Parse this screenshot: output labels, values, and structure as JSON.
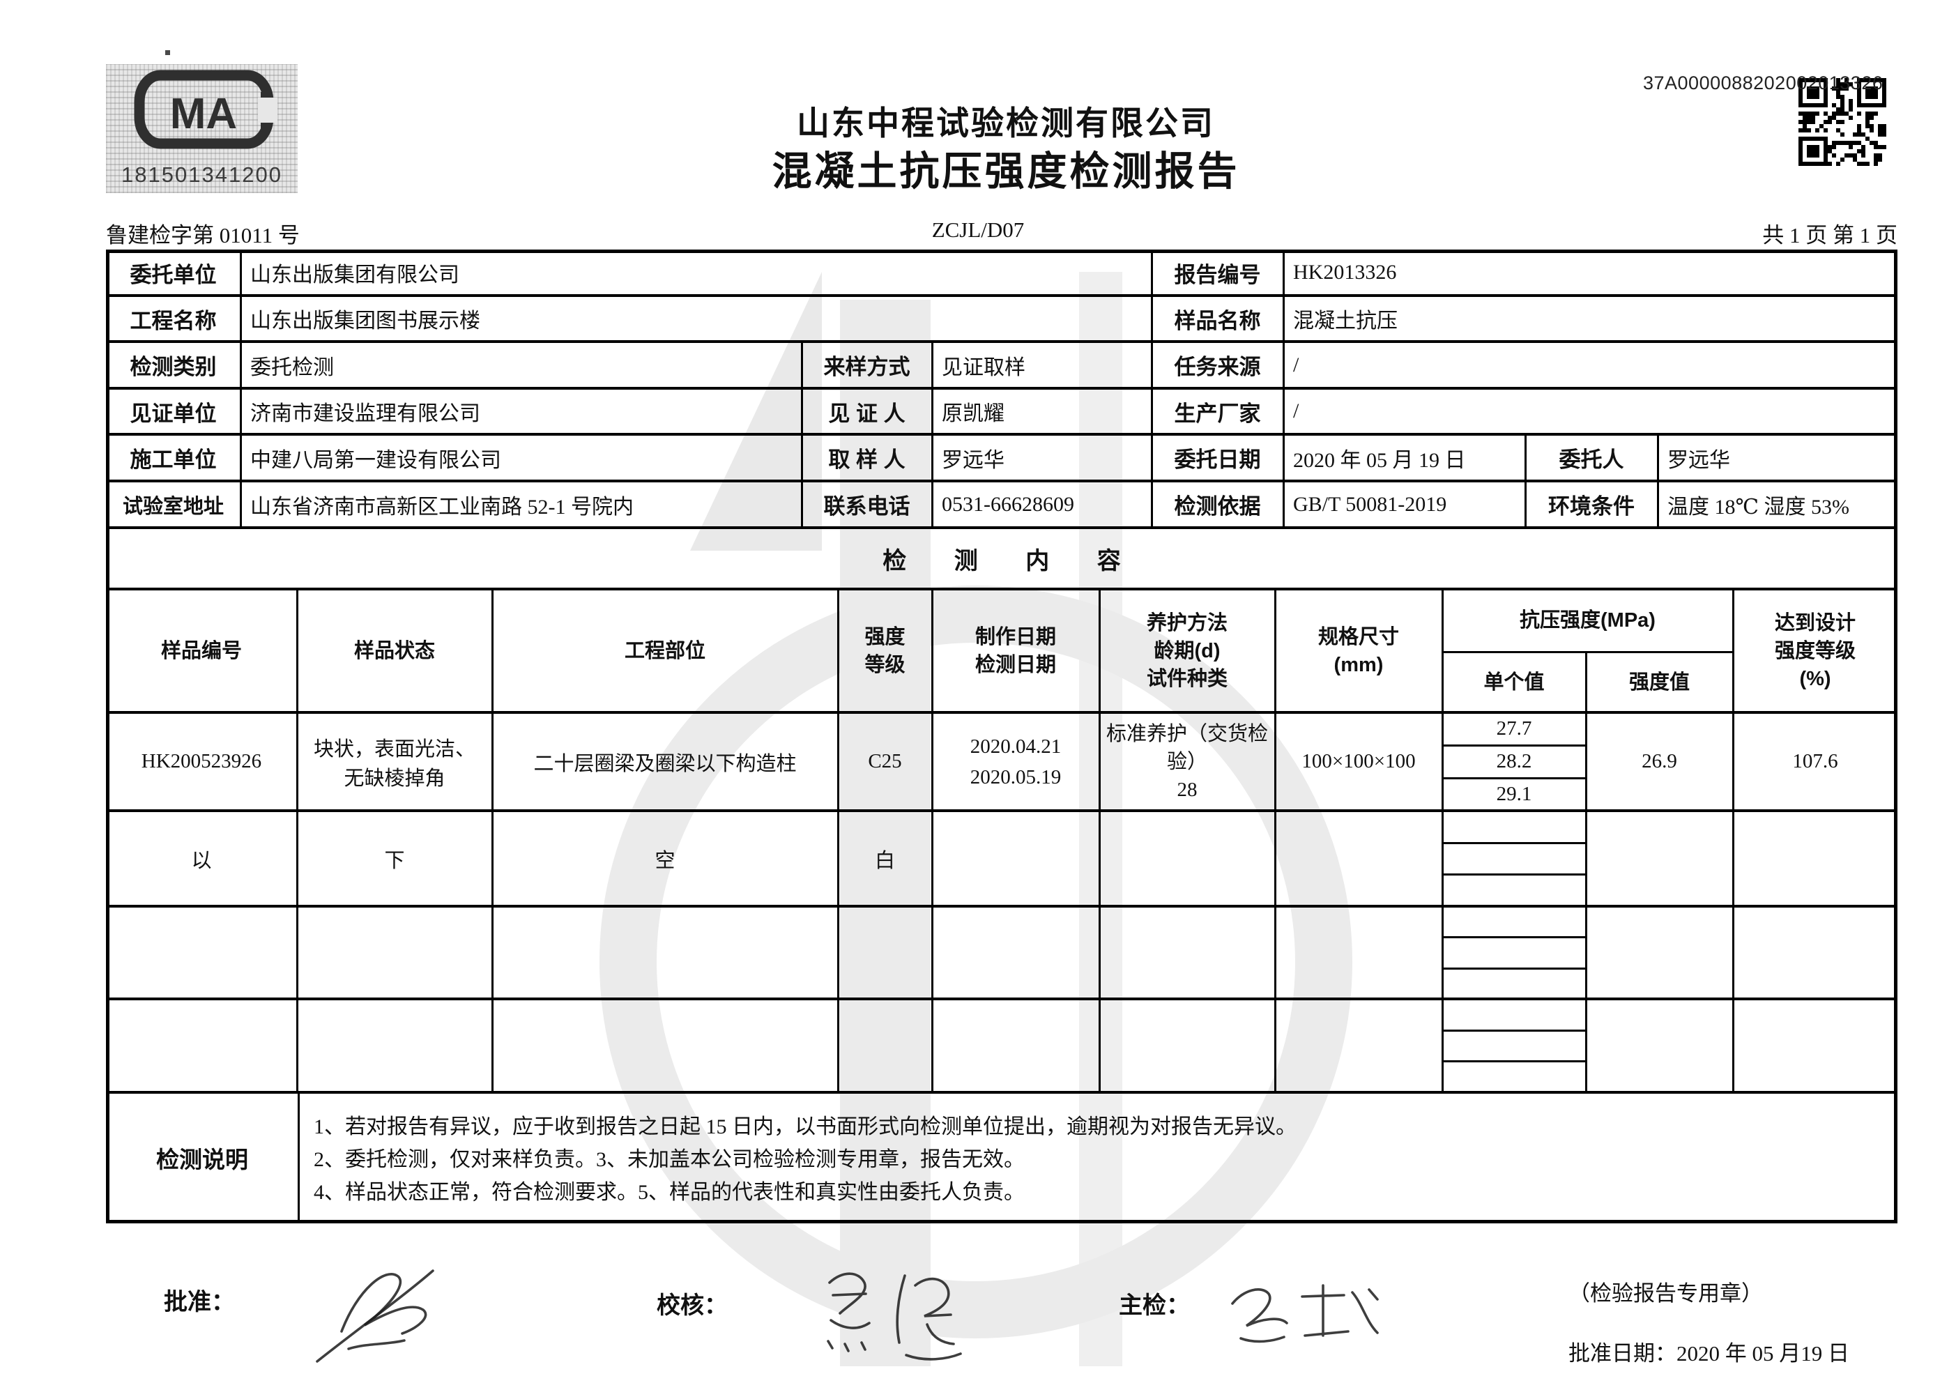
{
  "header": {
    "cma_number": "181501341200",
    "serial_number": "37A0000088202002013326",
    "company_title": "山东中程试验检测有限公司",
    "report_title": "混凝土抗压强度检测报告",
    "doc_number_left": "鲁建检字第 01011 号",
    "doc_code": "ZCJL/D07",
    "page_info": "共 1 页   第 1 页"
  },
  "info": {
    "entrust_unit": {
      "label": "委托单位",
      "value": "山东出版集团有限公司"
    },
    "report_no": {
      "label": "报告编号",
      "value": "HK2013326"
    },
    "project_name": {
      "label": "工程名称",
      "value": "山东出版集团图书展示楼"
    },
    "sample_name": {
      "label": "样品名称",
      "value": "混凝土抗压"
    },
    "test_type": {
      "label": "检测类别",
      "value": "委托检测"
    },
    "sampling_method": {
      "label": "来样方式",
      "value": "见证取样"
    },
    "task_source": {
      "label": "任务来源",
      "value": "/"
    },
    "witness_unit": {
      "label": "见证单位",
      "value": "济南市建设监理有限公司"
    },
    "witness_person": {
      "label": "见 证 人",
      "value": "原凯耀"
    },
    "manufacturer": {
      "label": "生产厂家",
      "value": "/"
    },
    "construction_unit": {
      "label": "施工单位",
      "value": "中建八局第一建设有限公司"
    },
    "sampler": {
      "label": "取 样 人",
      "value": "罗远华"
    },
    "entrust_date": {
      "label": "委托日期",
      "value": "2020 年 05 月 19 日"
    },
    "entrust_person": {
      "label": "委托人",
      "value": "罗远华"
    },
    "lab_address": {
      "label": "试验室地址",
      "value": "山东省济南市高新区工业南路 52-1 号院内"
    },
    "contact_phone": {
      "label": "联系电话",
      "value": "0531-66628609"
    },
    "test_basis": {
      "label": "检测依据",
      "value": "GB/T 50081-2019"
    },
    "environment": {
      "label": "环境条件",
      "value": "温度 18℃ 湿度 53%"
    }
  },
  "content": {
    "section_title": "检 测 内 容",
    "headers": {
      "sample_no": "样品编号",
      "sample_state": "样品状态",
      "project_part": "工程部位",
      "strength_grade": "强度\n等级",
      "make_date": "制作日期\n检测日期",
      "curing": "养护方法\n龄期(d)\n试件种类",
      "size": "规格尺寸\n(mm)",
      "compressive": "抗压强度(MPa)",
      "single_value": "单个值",
      "strength_value": "强度值",
      "design": "达到设计\n强度等级\n(%)"
    },
    "row1": {
      "sample_no": "HK200523926",
      "sample_state": "块状，表面光洁、\n无缺棱掉角",
      "project_part": "二十层圈梁及圈梁以下构造柱",
      "strength_grade": "C25",
      "dates": "2020.04.21\n2020.05.19",
      "curing_method": "标准养护（交货检验）",
      "curing_age": "28",
      "size": "100×100×100",
      "singles": [
        "27.7",
        "28.2",
        "29.1"
      ],
      "strength_value": "26.9",
      "design": "107.6"
    },
    "row2": {
      "c1": "以",
      "c2": "下",
      "c3": "空",
      "c4": "白"
    }
  },
  "notes": {
    "label": "检测说明",
    "lines": [
      "1、若对报告有异议，应于收到报告之日起 15 日内，以书面形式向检测单位提出，逾期视为对报告无异议。",
      "2、委托检测，仅对来样负责。3、未加盖本公司检验检测专用章，报告无效。",
      "4、样品状态正常，符合检测要求。5、样品的代表性和真实性由委托人负责。"
    ]
  },
  "footer": {
    "approve_label": "批准：",
    "review_label": "校核：",
    "chief_label": "主检：",
    "seal_note": "（检验报告专用章）",
    "approve_date": "批准日期：2020 年 05 月19 日"
  }
}
